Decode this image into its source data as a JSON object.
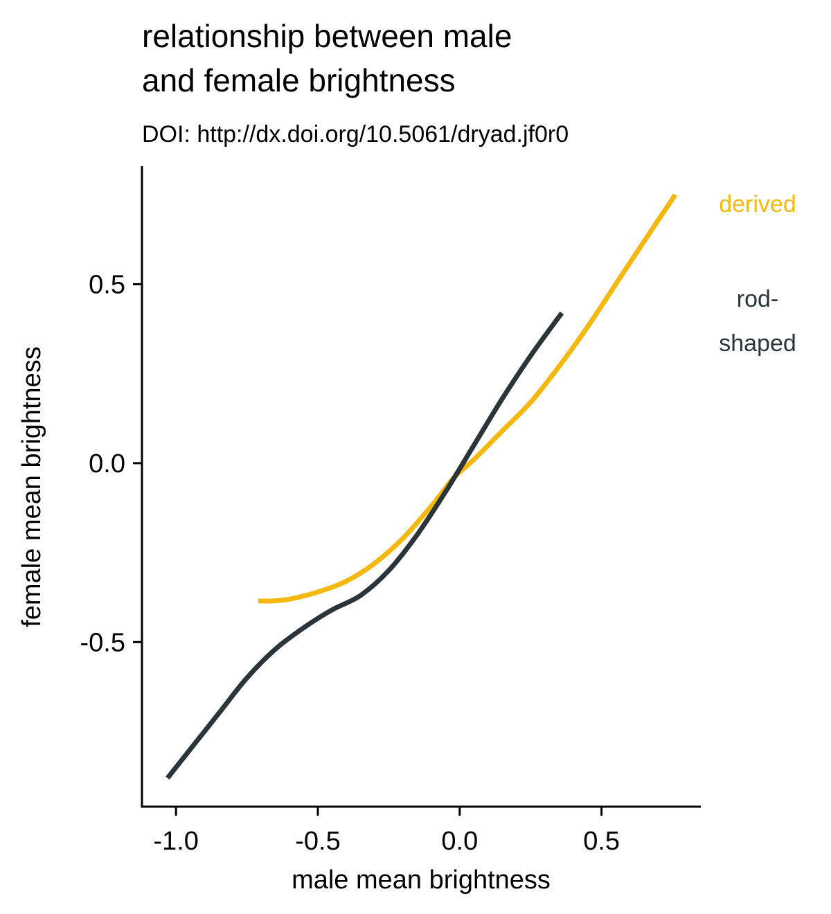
{
  "chart_data": {
    "type": "line",
    "title_lines": [
      "relationship between male",
      "and female brightness"
    ],
    "subtitle": "DOI: http://dx.doi.org/10.5061/dryad.jf0r0",
    "xlabel": "male mean brightness",
    "ylabel": "female mean brightness",
    "xlim": [
      -1.12,
      0.85
    ],
    "ylim": [
      -0.96,
      0.83
    ],
    "x_ticks": [
      -1.0,
      -0.5,
      0.0,
      0.5
    ],
    "x_tick_labels": [
      "-1.0",
      "-0.5",
      "0.0",
      "0.5"
    ],
    "y_ticks": [
      -0.5,
      0.0,
      0.5
    ],
    "y_tick_labels": [
      "-0.5",
      "0.0",
      "0.5"
    ],
    "grid": false,
    "legend": "direct labels at right",
    "series": [
      {
        "name": "derived",
        "label_lines": [
          "derived"
        ],
        "color": "#F5B80F",
        "x": [
          -0.71,
          -0.66,
          -0.6,
          -0.5,
          -0.4,
          -0.3,
          -0.2,
          -0.1,
          -0.02,
          0.05,
          0.15,
          0.25,
          0.35,
          0.45,
          0.55,
          0.65,
          0.76
        ],
        "y": [
          -0.385,
          -0.385,
          -0.38,
          -0.36,
          -0.33,
          -0.28,
          -0.21,
          -0.12,
          -0.04,
          0.01,
          0.09,
          0.17,
          0.27,
          0.38,
          0.5,
          0.62,
          0.75
        ]
      },
      {
        "name": "rod-shaped",
        "label_lines": [
          "rod-",
          "shaped"
        ],
        "color": "#2B3439",
        "x": [
          -1.03,
          -0.95,
          -0.85,
          -0.75,
          -0.65,
          -0.55,
          -0.45,
          -0.35,
          -0.25,
          -0.15,
          -0.05,
          0.05,
          0.15,
          0.25,
          0.36
        ],
        "y": [
          -0.88,
          -0.8,
          -0.7,
          -0.6,
          -0.52,
          -0.46,
          -0.41,
          -0.37,
          -0.3,
          -0.2,
          -0.08,
          0.05,
          0.18,
          0.3,
          0.42
        ]
      }
    ]
  }
}
